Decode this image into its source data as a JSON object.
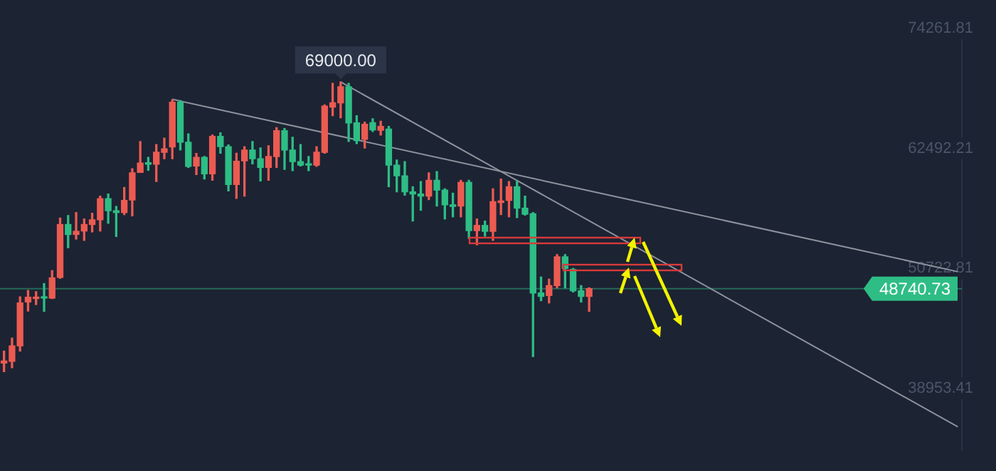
{
  "chart_data": {
    "type": "candlestick",
    "tick_labels": "y",
    "categories": [
      null,
      null,
      null,
      null,
      null,
      null,
      null,
      null,
      null,
      null,
      null,
      null,
      null,
      null,
      null,
      null,
      null,
      null,
      null,
      null,
      null,
      null,
      null,
      null,
      null,
      null,
      null,
      null,
      null,
      null,
      null,
      null,
      null,
      null,
      null,
      null,
      null,
      null,
      null,
      null,
      null,
      null,
      null,
      null,
      null,
      null,
      null,
      null,
      null,
      null,
      null,
      null,
      null,
      null,
      null,
      null,
      null,
      null,
      null,
      null,
      null,
      null,
      null,
      null,
      null,
      null,
      null,
      null,
      null,
      null,
      null,
      null,
      null,
      null,
      null,
      null,
      null,
      null,
      null,
      null,
      null,
      null,
      null,
      null,
      null,
      null,
      null,
      null,
      null,
      null,
      null,
      null,
      null,
      null,
      null,
      null,
      null,
      null,
      null,
      null,
      null,
      null,
      null,
      null,
      null,
      null,
      null,
      null,
      null,
      null,
      null,
      null,
      null,
      null,
      null,
      null,
      null,
      null,
      null,
      null
    ],
    "ylim": [
      32900,
      75000
    ],
    "yticks": [
      38953.41,
      50722.81,
      62492.21,
      74261.81
    ],
    "ref_lines": [
      {
        "axis": "y",
        "value": 48740.73,
        "label": "48740.73",
        "color": "#2ebd85"
      }
    ],
    "annotations": [
      {
        "text": "69000.00",
        "y": 69000
      }
    ],
    "series": [
      {
        "ohlc": [
          [
            41450,
            42620,
            40600,
            41650
          ],
          [
            41610,
            43890,
            40980,
            43130
          ],
          [
            43130,
            47940,
            42620,
            47340
          ],
          [
            47430,
            48570,
            46550,
            47900
          ],
          [
            47770,
            48440,
            47180,
            47850
          ],
          [
            47940,
            49240,
            46510,
            47810
          ],
          [
            47810,
            50510,
            47770,
            49800
          ],
          [
            49840,
            55660,
            49750,
            55030
          ],
          [
            55030,
            55910,
            52750,
            54050
          ],
          [
            54050,
            56200,
            53600,
            54360
          ],
          [
            54390,
            55570,
            53470,
            55030
          ],
          [
            55030,
            56130,
            54300,
            55490
          ],
          [
            55490,
            57810,
            54390,
            57560
          ],
          [
            57560,
            58020,
            55150,
            56380
          ],
          [
            56380,
            56800,
            53850,
            56200
          ],
          [
            56200,
            58660,
            56000,
            57390
          ],
          [
            57430,
            60500,
            55870,
            60090
          ],
          [
            60130,
            63160,
            60130,
            61060
          ],
          [
            61060,
            61610,
            60340,
            60940
          ],
          [
            60940,
            62870,
            59240,
            62110
          ],
          [
            62110,
            63500,
            61480,
            62450
          ],
          [
            62620,
            67260,
            61480,
            67010
          ],
          [
            67010,
            67170,
            62330,
            63090
          ],
          [
            63090,
            63920,
            60630,
            60720
          ],
          [
            60760,
            61990,
            59920,
            61610
          ],
          [
            61610,
            61690,
            59490,
            60000
          ],
          [
            60000,
            63800,
            59370,
            63670
          ],
          [
            63670,
            64010,
            62020,
            62660
          ],
          [
            62660,
            62830,
            58320,
            58950
          ],
          [
            58950,
            62020,
            57590,
            61230
          ],
          [
            61260,
            62660,
            57810,
            62330
          ],
          [
            62330,
            63160,
            60970,
            61480
          ],
          [
            61480,
            62530,
            59290,
            60630
          ],
          [
            60630,
            62740,
            59370,
            61690
          ],
          [
            61690,
            64520,
            60630,
            64230
          ],
          [
            64230,
            64430,
            60430,
            62330
          ],
          [
            62330,
            63590,
            60300,
            61190
          ],
          [
            61190,
            62870,
            60760,
            60850
          ],
          [
            60970,
            61690,
            60300,
            60850
          ],
          [
            60850,
            62660,
            60720,
            62110
          ],
          [
            62110,
            66760,
            62020,
            66630
          ],
          [
            66540,
            68860,
            65690,
            66960
          ],
          [
            66960,
            69000,
            65490,
            68530
          ],
          [
            68530,
            68860,
            63160,
            64990
          ],
          [
            64990,
            65690,
            62960,
            63250
          ],
          [
            63380,
            65060,
            62530,
            64860
          ],
          [
            65020,
            65400,
            64140,
            64300
          ],
          [
            64260,
            65150,
            63800,
            64640
          ],
          [
            64390,
            64640,
            58730,
            60850
          ],
          [
            60850,
            61350,
            58230,
            59800
          ],
          [
            59800,
            61190,
            57900,
            58230
          ],
          [
            58230,
            58730,
            55370,
            58020
          ],
          [
            58020,
            59240,
            56420,
            57810
          ],
          [
            57810,
            60090,
            57470,
            59370
          ],
          [
            59370,
            60210,
            56840,
            58400
          ],
          [
            58400,
            58530,
            55570,
            56960
          ],
          [
            56960,
            58100,
            55780,
            56800
          ],
          [
            56840,
            59370,
            55780,
            59160
          ],
          [
            59160,
            59370,
            53670,
            54430
          ],
          [
            54430,
            55570,
            53040,
            54940
          ],
          [
            54940,
            55370,
            53890,
            54360
          ],
          [
            54360,
            58530,
            53470,
            57270
          ],
          [
            57180,
            59490,
            56000,
            57340
          ],
          [
            57390,
            59240,
            55780,
            58730
          ],
          [
            58730,
            59240,
            55700,
            56630
          ],
          [
            56630,
            57810,
            55950,
            56040
          ],
          [
            56080,
            56200,
            42080,
            48320
          ],
          [
            48320,
            49880,
            47560,
            47980
          ],
          [
            48070,
            49670,
            47340,
            49040
          ],
          [
            49040,
            52080,
            48820,
            51860
          ],
          [
            51860,
            52080,
            48820,
            50720
          ],
          [
            50630,
            50720,
            48410,
            48530
          ],
          [
            48530,
            49040,
            47430,
            47980
          ],
          [
            47980,
            48820,
            46510,
            48740.73
          ],
          null,
          null,
          null,
          null,
          null,
          null,
          null,
          null,
          null,
          null,
          null,
          null,
          null,
          null,
          null,
          null,
          null,
          null,
          null,
          null,
          null,
          null,
          null,
          null,
          null,
          null,
          null,
          null,
          null,
          null,
          null,
          null,
          null,
          null,
          null,
          null,
          null,
          null,
          null,
          null,
          null,
          null,
          null,
          null,
          null,
          null
        ],
        "colors": [
          "#ec5b52",
          "#ec5b52",
          "#ec5b52",
          "#ec5b52",
          "#ec5b52",
          "#2ebd85",
          "#ec5b52",
          "#ec5b52",
          "#2ebd85",
          "#ec5b52",
          "#ec5b52",
          "#ec5b52",
          "#ec5b52",
          "#2ebd85",
          "#2ebd85",
          "#ec5b52",
          "#ec5b52",
          "#ec5b52",
          "#2ebd85",
          "#ec5b52",
          "#ec5b52",
          "#ec5b52",
          "#2ebd85",
          "#2ebd85",
          "#ec5b52",
          "#2ebd85",
          "#ec5b52",
          "#2ebd85",
          "#2ebd85",
          "#ec5b52",
          "#ec5b52",
          "#2ebd85",
          "#2ebd85",
          "#ec5b52",
          "#ec5b52",
          "#2ebd85",
          "#2ebd85",
          "#2ebd85",
          "#2ebd85",
          "#ec5b52",
          "#ec5b52",
          "#ec5b52",
          "#ec5b52",
          "#2ebd85",
          "#2ebd85",
          "#ec5b52",
          "#2ebd85",
          "#ec5b52",
          "#2ebd85",
          "#2ebd85",
          "#2ebd85",
          "#2ebd85",
          "#2ebd85",
          "#ec5b52",
          "#2ebd85",
          "#2ebd85",
          "#2ebd85",
          "#ec5b52",
          "#2ebd85",
          "#ec5b52",
          "#2ebd85",
          "#ec5b52",
          "#ec5b52",
          "#ec5b52",
          "#2ebd85",
          "#2ebd85",
          "#2ebd85",
          "#2ebd85",
          "#ec5b52",
          "#ec5b52",
          "#2ebd85",
          "#2ebd85",
          "#2ebd85",
          "#ec5b52",
          null,
          null,
          null,
          null,
          null,
          null,
          null,
          null,
          null,
          null,
          null,
          null,
          null,
          null,
          null,
          null,
          null,
          null,
          null,
          null,
          null,
          null,
          null,
          null,
          null,
          null,
          null,
          null,
          null,
          null,
          null,
          null,
          null,
          null,
          null,
          null,
          null,
          null,
          null,
          null,
          null,
          null,
          null,
          null,
          null,
          null
        ]
      },
      {
        "type": "line",
        "color": "#8d929c",
        "values": [
          null,
          null,
          null,
          null,
          null,
          null,
          null,
          null,
          null,
          null,
          null,
          null,
          null,
          null,
          null,
          null,
          null,
          null,
          null,
          null,
          null,
          67300,
          null,
          null,
          null,
          null,
          null,
          null,
          null,
          null,
          null,
          null,
          null,
          null,
          null,
          null,
          null,
          null,
          null,
          null,
          null,
          null,
          null,
          null,
          null,
          null,
          null,
          null,
          null,
          null,
          null,
          null,
          null,
          null,
          null,
          null,
          null,
          null,
          null,
          null,
          null,
          null,
          null,
          null,
          null,
          null,
          null,
          null,
          null,
          null,
          null,
          null,
          null,
          null,
          null,
          null,
          null,
          null,
          null,
          null,
          null,
          null,
          null,
          null,
          null,
          null,
          null,
          null,
          null,
          null,
          null,
          null,
          null,
          null,
          null,
          null,
          null,
          null,
          null,
          null,
          null,
          null,
          null,
          null,
          null,
          null,
          null,
          null,
          null,
          null,
          null,
          null,
          null,
          null,
          null,
          null,
          null,
          null,
          null,
          50400
        ]
      },
      {
        "type": "line",
        "color": "#8d929c",
        "values": [
          null,
          null,
          null,
          null,
          null,
          null,
          null,
          null,
          null,
          null,
          null,
          null,
          null,
          null,
          null,
          null,
          null,
          null,
          null,
          null,
          null,
          null,
          null,
          null,
          null,
          null,
          null,
          null,
          null,
          null,
          null,
          null,
          null,
          null,
          null,
          null,
          null,
          null,
          null,
          null,
          null,
          null,
          69000,
          null,
          null,
          null,
          null,
          null,
          null,
          null,
          null,
          null,
          null,
          null,
          null,
          null,
          null,
          null,
          null,
          null,
          null,
          null,
          null,
          null,
          null,
          null,
          null,
          null,
          null,
          null,
          null,
          null,
          null,
          null,
          null,
          null,
          null,
          null,
          null,
          null,
          null,
          null,
          null,
          null,
          null,
          null,
          null,
          null,
          null,
          null,
          null,
          null,
          null,
          null,
          null,
          null,
          null,
          null,
          null,
          null,
          null,
          null,
          null,
          null,
          null,
          null,
          null,
          null,
          null,
          null,
          null,
          null,
          null,
          null,
          null,
          null,
          null,
          null,
          null,
          35200
        ]
      }
    ]
  }
}
